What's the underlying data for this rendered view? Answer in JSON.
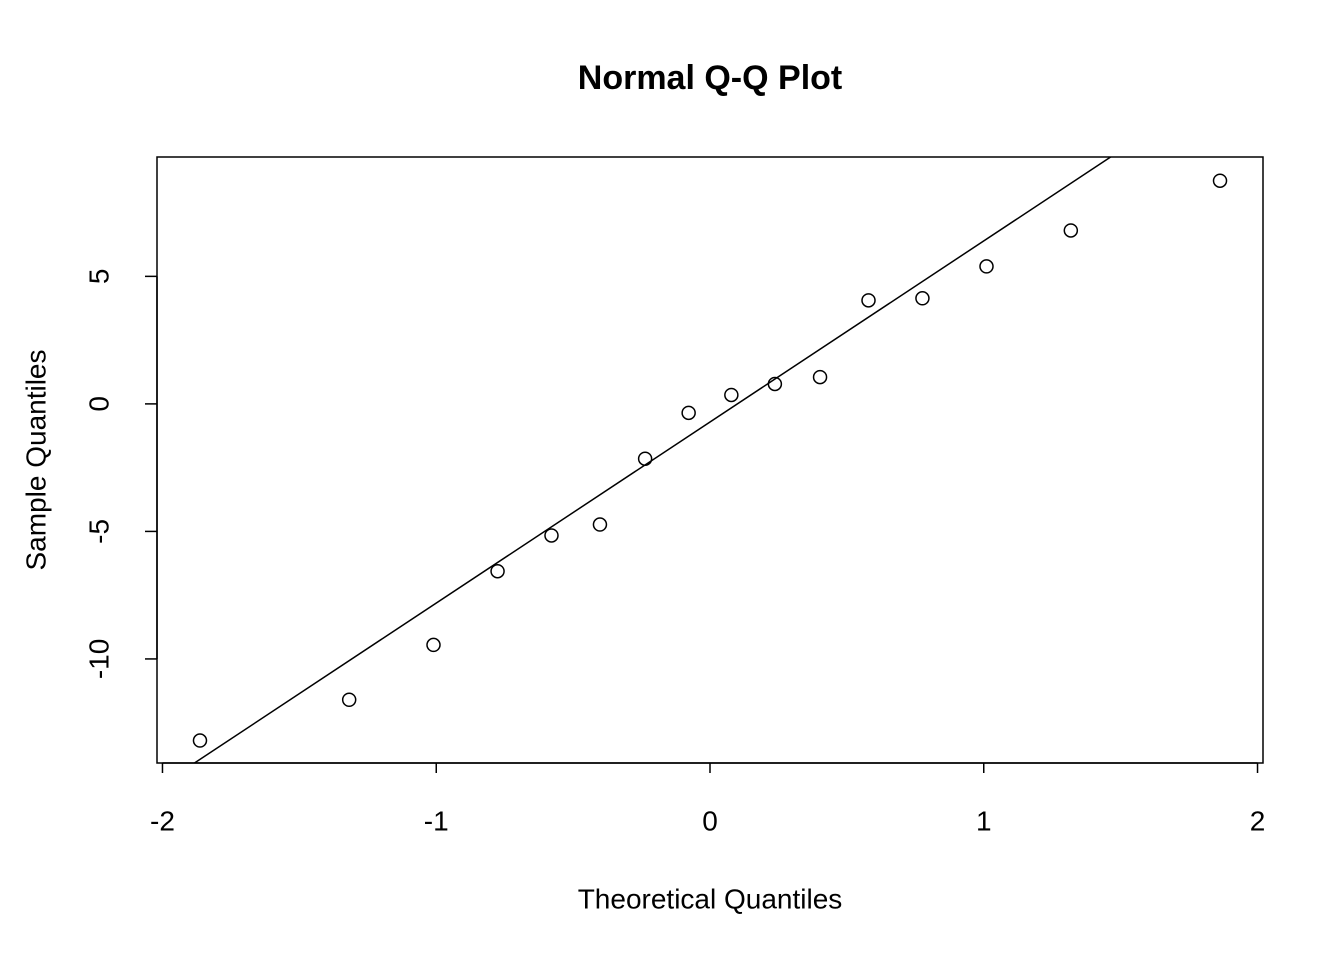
{
  "chart_data": {
    "type": "scatter",
    "title": "Normal Q-Q Plot",
    "x_label": "Theoretical Quantiles",
    "y_label": "Sample Quantiles",
    "x": [
      -1.863,
      -1.318,
      -1.01,
      -0.776,
      -0.579,
      -0.402,
      -0.237,
      -0.078,
      0.078,
      0.237,
      0.402,
      0.579,
      0.776,
      1.01,
      1.318,
      1.863
    ],
    "y": [
      -13.2,
      -11.6,
      -9.45,
      -6.56,
      -5.16,
      -4.73,
      -2.15,
      -0.35,
      0.35,
      0.78,
      1.05,
      4.06,
      4.14,
      5.39,
      6.8,
      8.75
    ],
    "color": "#000000",
    "reference_line": {
      "intercept": -0.71,
      "slope": 7.1
    },
    "xlim": [
      -2.02,
      2.02
    ],
    "ylim": [
      -14.08,
      9.68
    ],
    "xticks": [
      -2,
      -1,
      0,
      1,
      2
    ],
    "yticks": [
      -10,
      -5,
      0,
      5
    ]
  }
}
